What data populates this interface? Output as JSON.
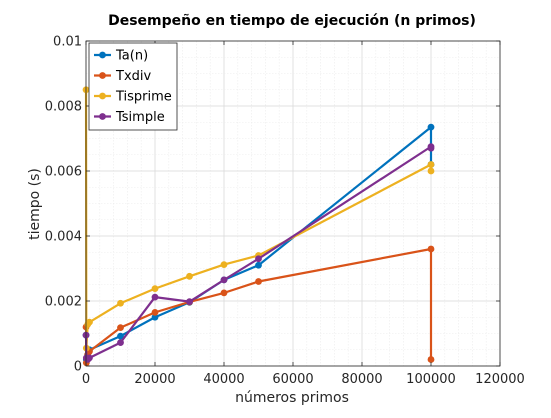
{
  "chart_data": {
    "type": "line",
    "title": "Desempeño en tiempo de ejecución (n primos)",
    "xlabel": "números primos",
    "ylabel": "tiempo (s)",
    "xlim": [
      0,
      120000
    ],
    "ylim": [
      0,
      0.01
    ],
    "xticks": [
      0,
      20000,
      40000,
      60000,
      80000,
      100000,
      120000
    ],
    "xtick_labels": [
      "0",
      "20000",
      "40000",
      "60000",
      "80000",
      "100000",
      "120000"
    ],
    "yticks": [
      0,
      0.002,
      0.004,
      0.006,
      0.008,
      0.01
    ],
    "ytick_labels": [
      "0",
      "0.002",
      "0.004",
      "0.006",
      "0.008",
      "0.01"
    ],
    "grid": true,
    "legend_position": "top-left",
    "series": [
      {
        "name": "Ta(n)",
        "color": "#0072BD",
        "points": [
          [
            10,
            0.00095
          ],
          [
            100,
            0.0002
          ],
          [
            500,
            0.00035
          ],
          [
            1000,
            0.0005
          ],
          [
            10000,
            0.00092
          ],
          [
            20000,
            0.0015
          ],
          [
            30000,
            0.00196
          ],
          [
            40000,
            0.00265
          ],
          [
            50000,
            0.0031
          ],
          [
            100000,
            0.00735
          ],
          [
            100000,
            0.0062
          ]
        ]
      },
      {
        "name": "Txdiv",
        "color": "#D95319",
        "points": [
          [
            10,
            0.0012
          ],
          [
            100,
            0.0001
          ],
          [
            500,
            0.00035
          ],
          [
            1000,
            0.00045
          ],
          [
            10000,
            0.00118
          ],
          [
            20000,
            0.00165
          ],
          [
            30000,
            0.00197
          ],
          [
            40000,
            0.00225
          ],
          [
            50000,
            0.0026
          ],
          [
            100000,
            0.0036
          ],
          [
            100000,
            0.0002
          ]
        ]
      },
      {
        "name": "Tisprime",
        "color": "#EDB120",
        "points": [
          [
            10,
            0.0085
          ],
          [
            100,
            0.00055
          ],
          [
            500,
            0.00128
          ],
          [
            1000,
            0.00135
          ],
          [
            10000,
            0.00193
          ],
          [
            20000,
            0.00238
          ],
          [
            30000,
            0.00276
          ],
          [
            40000,
            0.00312
          ],
          [
            50000,
            0.0034
          ],
          [
            100000,
            0.0062
          ],
          [
            100000,
            0.006
          ]
        ]
      },
      {
        "name": "Tsimple",
        "color": "#7E2F8E",
        "points": [
          [
            10,
            0.00095
          ],
          [
            100,
            0.00025
          ],
          [
            500,
            0.0002
          ],
          [
            1000,
            0.00025
          ],
          [
            10000,
            0.00072
          ],
          [
            20000,
            0.00212
          ],
          [
            30000,
            0.00198
          ],
          [
            40000,
            0.00265
          ],
          [
            50000,
            0.0033
          ],
          [
            100000,
            0.00675
          ],
          [
            100000,
            0.0067
          ]
        ]
      }
    ]
  }
}
